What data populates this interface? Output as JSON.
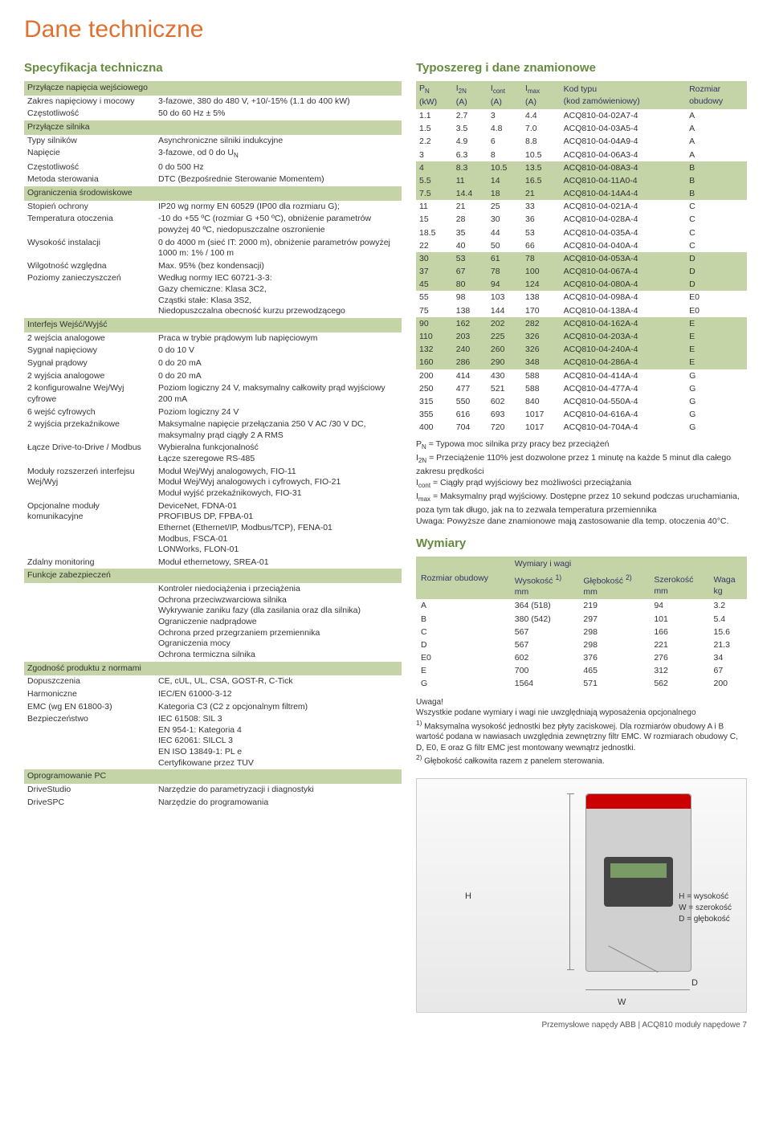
{
  "page_title": "Dane techniczne",
  "spec_heading": "Specyfikacja techniczna",
  "ratings_heading": "Typoszereg i dane znamionowe",
  "dims_heading": "Wymiary",
  "dims_sub": "Wymiary i wagi",
  "footer": "Przemysłowe napędy ABB | ACQ810 moduły napędowe   7",
  "colors": {
    "accent": "#c5d4a6",
    "heading": "#668a3e",
    "title": "#e07030"
  },
  "spec_sections": [
    {
      "title": "Przyłącze napięcia wejściowego",
      "rows": [
        [
          "Zakres napięciowy i mocowy",
          "3-fazowe, 380 do 480 V, +10/-15% (1.1 do 400 kW)"
        ],
        [
          "Częstotliwość",
          "50 do 60 Hz ± 5%"
        ]
      ]
    },
    {
      "title": "Przyłącze silnika",
      "rows": [
        [
          "Typy silników",
          "Asynchroniczne silniki indukcyjne"
        ],
        [
          "Napięcie",
          "3-fazowe, od 0 do U<sub>N</sub>"
        ],
        [
          "Częstotliwość",
          "0 do 500 Hz"
        ],
        [
          "Metoda sterowania",
          "DTC (Bezpośrednie Sterowanie Momentem)"
        ]
      ]
    },
    {
      "title": "Ograniczenia środowiskowe",
      "rows": [
        [
          "Stopień ochrony",
          "IP20 wg normy EN 60529 (IP00 dla rozmiaru G);"
        ],
        [
          "Temperatura otoczenia",
          "-10 do +55 ºC (rozmiar G +50 ºC), obniżenie parametrów powyżej 40 ºC, niedopuszczalne oszronienie"
        ],
        [
          "Wysokość instalacji",
          "0 do 4000 m (sieć IT: 2000 m), obniżenie parametrów powyżej 1000 m: 1% / 100 m"
        ],
        [
          "Wilgotność względna",
          "Max. 95% (bez kondensacji)"
        ],
        [
          "Poziomy zanieczyszczeń",
          "Według normy IEC 60721-3-3:<br>Gazy chemiczne: Klasa 3C2,<br>Cząstki stałe: Klasa 3S2,<br>Niedopuszczalna obecność kurzu przewodzącego"
        ]
      ]
    },
    {
      "title": "Interfejs Wejść/Wyjść",
      "rows": [
        [
          "2 wejścia analogowe",
          "Praca w trybie prądowym lub napięciowym"
        ],
        [
          "Sygnał napięciowy",
          "0 do 10 V"
        ],
        [
          "Sygnał prądowy",
          "0 do 20 mA"
        ],
        [
          "2 wyjścia analogowe",
          "0 do 20 mA"
        ],
        [
          "2 konfigurowalne Wej/Wyj cyfrowe",
          "Poziom logiczny 24 V, maksymalny całkowity prąd wyjściowy 200 mA"
        ],
        [
          "6 wejść cyfrowych",
          "Poziom logiczny 24 V"
        ],
        [
          "2 wyjścia przekaźnikowe",
          "Maksymalne napięcie przełączania 250 V AC /30 V DC, maksymalny prąd ciągły 2 A RMS"
        ],
        [
          "Łącze Drive-to-Drive / Modbus",
          "Wybieralna funkcjonalność<br>Łącze szeregowe RS-485"
        ],
        [
          "Moduły rozszerzeń interfejsu Wej/Wyj",
          "Moduł Wej/Wyj analogowych, FIO-11<br>Moduł Wej/Wyj analogowych i cyfrowych, FIO-21<br>Moduł wyjść przekaźnikowych, FIO-31"
        ],
        [
          "Opcjonalne moduły komunikacyjne",
          "DeviceNet, FDNA-01<br>PROFIBUS DP, FPBA-01<br>Ethernet (Ethernet/IP, Modbus/TCP), FENA-01<br>Modbus, FSCA-01<br>LONWorks, FLON-01"
        ],
        [
          "Zdalny monitoring",
          "Moduł ethernetowy, SREA-01"
        ]
      ]
    },
    {
      "title": "Funkcje zabezpieczeń",
      "rows": [
        [
          "",
          "Kontroler niedociążenia i przeciążenia<br>Ochrona przeciwzwarciowa silnika<br>Wykrywanie zaniku fazy (dla zasilania oraz dla silnika)<br>Ograniczenie nadprądowe<br>Ochrona przed przegrzaniem przemiennika<br>Ograniczenia mocy<br>Ochrona termiczna silnika"
        ]
      ]
    },
    {
      "title": "Zgodność produktu z normami",
      "rows": [
        [
          "Dopuszczenia",
          "CE, cUL, UL, CSA, GOST-R, C-Tick"
        ],
        [
          "Harmoniczne",
          "IEC/EN 61000-3-12"
        ],
        [
          "EMC (wg EN 61800-3)",
          "Kategoria C3 (C2 z opcjonalnym filtrem)"
        ],
        [
          "Bezpieczeństwo",
          "IEC 61508: SIL 3<br>EN 954-1: Kategoria 4<br>IEC 62061: SILCL 3<br>EN ISO 13849-1: PL e<br>Certyfikowane przez TUV"
        ]
      ]
    },
    {
      "title": "Oprogramowanie PC",
      "rows": [
        [
          "DriveStudio",
          "Narzędzie do parametryzacji i diagnostyki"
        ],
        [
          "DriveSPC",
          "Narzędzie do programowania"
        ]
      ]
    }
  ],
  "ratings": {
    "headers": [
      "P<sub>N</sub><br>(kW)",
      "I<sub>2N</sub><br>(A)",
      "I<sub>cont</sub><br>(A)",
      "I<sub>max</sub><br>(A)",
      "Kod typu<br>(kod zamówieniowy)",
      "Rozmiar<br>obudowy"
    ],
    "groups": [
      {
        "band": false,
        "rows": [
          [
            "1.1",
            "2.7",
            "3",
            "4.4",
            "ACQ810-04-02A7-4",
            "A"
          ],
          [
            "1.5",
            "3.5",
            "4.8",
            "7.0",
            "ACQ810-04-03A5-4",
            "A"
          ],
          [
            "2.2",
            "4.9",
            "6",
            "8.8",
            "ACQ810-04-04A9-4",
            "A"
          ],
          [
            "3",
            "6.3",
            "8",
            "10.5",
            "ACQ810-04-06A3-4",
            "A"
          ]
        ]
      },
      {
        "band": true,
        "rows": [
          [
            "4",
            "8.3",
            "10.5",
            "13.5",
            "ACQ810-04-08A3-4",
            "B"
          ],
          [
            "5.5",
            "11",
            "14",
            "16.5",
            "ACQ810-04-11A0-4",
            "B"
          ],
          [
            "7.5",
            "14.4",
            "18",
            "21",
            "ACQ810-04-14A4-4",
            "B"
          ]
        ]
      },
      {
        "band": false,
        "rows": [
          [
            "11",
            "21",
            "25",
            "33",
            "ACQ810-04-021A-4",
            "C"
          ],
          [
            "15",
            "28",
            "30",
            "36",
            "ACQ810-04-028A-4",
            "C"
          ],
          [
            "18.5",
            "35",
            "44",
            "53",
            "ACQ810-04-035A-4",
            "C"
          ],
          [
            "22",
            "40",
            "50",
            "66",
            "ACQ810-04-040A-4",
            "C"
          ]
        ]
      },
      {
        "band": true,
        "rows": [
          [
            "30",
            "53",
            "61",
            "78",
            "ACQ810-04-053A-4",
            "D"
          ],
          [
            "37",
            "67",
            "78",
            "100",
            "ACQ810-04-067A-4",
            "D"
          ],
          [
            "45",
            "80",
            "94",
            "124",
            "ACQ810-04-080A-4",
            "D"
          ]
        ]
      },
      {
        "band": false,
        "rows": [
          [
            "55",
            "98",
            "103",
            "138",
            "ACQ810-04-098A-4",
            "E0"
          ],
          [
            "75",
            "138",
            "144",
            "170",
            "ACQ810-04-138A-4",
            "E0"
          ]
        ]
      },
      {
        "band": true,
        "rows": [
          [
            "90",
            "162",
            "202",
            "282",
            "ACQ810-04-162A-4",
            "E"
          ],
          [
            "110",
            "203",
            "225",
            "326",
            "ACQ810-04-203A-4",
            "E"
          ],
          [
            "132",
            "240",
            "260",
            "326",
            "ACQ810-04-240A-4",
            "E"
          ],
          [
            "160",
            "286",
            "290",
            "348",
            "ACQ810-04-286A-4",
            "E"
          ]
        ]
      },
      {
        "band": false,
        "rows": [
          [
            "200",
            "414",
            "430",
            "588",
            "ACQ810-04-414A-4",
            "G"
          ],
          [
            "250",
            "477",
            "521",
            "588",
            "ACQ810-04-477A-4",
            "G"
          ],
          [
            "315",
            "550",
            "602",
            "840",
            "ACQ810-04-550A-4",
            "G"
          ],
          [
            "355",
            "616",
            "693",
            "1017",
            "ACQ810-04-616A-4",
            "G"
          ],
          [
            "400",
            "704",
            "720",
            "1017",
            "ACQ810-04-704A-4",
            "G"
          ]
        ]
      }
    ]
  },
  "ratings_legend": [
    "P<sub>N</sub> = Typowa moc silnika przy pracy bez przeciążeń",
    "I<sub>2N</sub> = Przeciążenie 110% jest dozwolone przez 1 minutę na każde 5 minut dla całego zakresu prędkości",
    "I<sub>cont</sub> = Ciągły prąd wyjściowy bez możliwości przeciążania",
    "I<sub>max</sub> = Maksymalny prąd wyjściowy. Dostępne przez 10 sekund podczas uruchamiania, poza tym tak długo, jak na to zezwala temperatura przemiennika",
    "Uwaga: Powyższe dane znamionowe mają zastosowanie dla temp. otoczenia 40°C."
  ],
  "dims": {
    "headers": [
      "Rozmiar obudowy",
      "Wysokość <sup>1)</sup><br>mm",
      "Głębokość <sup>2)</sup><br>mm",
      "Szerokość<br>mm",
      "Waga<br>kg"
    ],
    "rows": [
      [
        "A",
        "364 (518)",
        "219",
        "94",
        "3.2"
      ],
      [
        "B",
        "380 (542)",
        "297",
        "101",
        "5.4"
      ],
      [
        "C",
        "567",
        "298",
        "166",
        "15.6"
      ],
      [
        "D",
        "567",
        "298",
        "221",
        "21.3"
      ],
      [
        "E0",
        "602",
        "376",
        "276",
        "34"
      ],
      [
        "E",
        "700",
        "465",
        "312",
        "67"
      ],
      [
        "G",
        "1564",
        "571",
        "562",
        "200"
      ]
    ]
  },
  "dims_note": "Uwaga!<br>Wszystkie podane wymiary i wagi nie uwzględniają wyposażenia opcjonalnego<br><sup>1)</sup> Maksymalna wysokość jednostki bez płyty zaciskowej. Dla rozmiarów obudowy A i B wartość podana w nawiasach uwzględnia zewnętrzny filtr EMC. W rozmiarach obudowy C, D, E0, E oraz G filtr EMC jest montowany wewnątrz jednostki.<br><sup>2)</sup> Głębokość całkowita razem z panelem sterowania.",
  "hwd": {
    "H": "H",
    "W": "W",
    "D": "D",
    "legend": "H = wysokość<br>W = szerokość<br>D = głębokość"
  }
}
